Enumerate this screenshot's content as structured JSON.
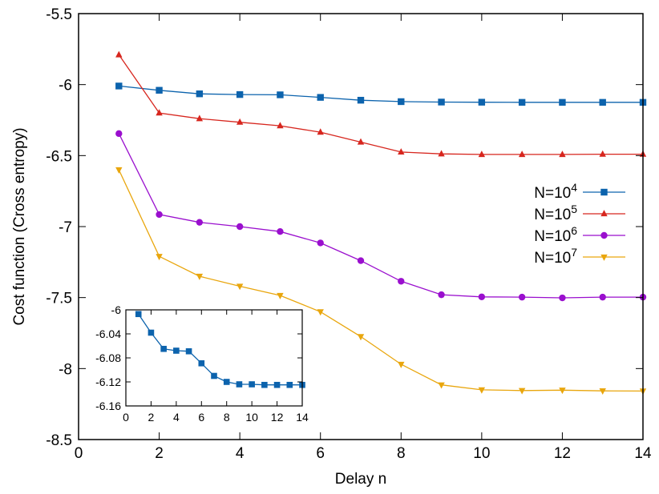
{
  "chart_data": [
    {
      "type": "line",
      "xlabel": "Delay n",
      "ylabel": "Cost function (Cross entropy)",
      "xlim": [
        0,
        14
      ],
      "ylim": [
        -8.5,
        -5.5
      ],
      "xticks": [
        "0",
        "2",
        "4",
        "6",
        "8",
        "10",
        "12",
        "14"
      ],
      "yticks": [
        "-5.5",
        "-6",
        "-6.5",
        "-7",
        "-7.5",
        "-8",
        "-8.5"
      ],
      "grid": false,
      "legend_position": "right",
      "x": [
        1,
        2,
        3,
        4,
        5,
        6,
        7,
        8,
        9,
        10,
        11,
        12,
        13,
        14
      ],
      "series": [
        {
          "name": "N=10",
          "sup": "4",
          "color": "#0c63ad",
          "marker": "square",
          "values": [
            -6.01,
            -6.04,
            -6.065,
            -6.07,
            -6.072,
            -6.09,
            -6.11,
            -6.12,
            -6.123,
            -6.124,
            -6.125,
            -6.125,
            -6.125,
            -6.125
          ]
        },
        {
          "name": "N=10",
          "sup": "5",
          "color": "#d7261e",
          "marker": "triangle-up",
          "values": [
            -5.79,
            -6.2,
            -6.24,
            -6.265,
            -6.29,
            -6.335,
            -6.405,
            -6.475,
            -6.488,
            -6.492,
            -6.492,
            -6.492,
            -6.49,
            -6.49
          ]
        },
        {
          "name": "N=10",
          "sup": "6",
          "color": "#9a0fce",
          "marker": "circle",
          "values": [
            -6.345,
            -6.915,
            -6.97,
            -7.0,
            -7.035,
            -7.115,
            -7.24,
            -7.385,
            -7.48,
            -7.495,
            -7.497,
            -7.502,
            -7.497,
            -7.497
          ]
        },
        {
          "name": "N=10",
          "sup": "7",
          "color": "#e9a60d",
          "marker": "triangle-down",
          "values": [
            -6.6,
            -7.21,
            -7.35,
            -7.42,
            -7.485,
            -7.6,
            -7.775,
            -7.97,
            -8.115,
            -8.15,
            -8.155,
            -8.152,
            -8.157,
            -8.158
          ]
        }
      ]
    },
    {
      "type": "line",
      "xlabel": "",
      "ylabel": "",
      "xlim": [
        0,
        14
      ],
      "ylim": [
        -6.16,
        -6.0
      ],
      "xticks": [
        "0",
        "2",
        "4",
        "6",
        "8",
        "10",
        "12",
        "14"
      ],
      "yticks": [
        "-6",
        "-6.04",
        "-6.08",
        "-6.12",
        "-6.16"
      ],
      "grid": false,
      "x": [
        1,
        2,
        3,
        4,
        5,
        6,
        7,
        8,
        9,
        10,
        11,
        12,
        13,
        14
      ],
      "series": [
        {
          "color": "#0c63ad",
          "marker": "square",
          "values": [
            -6.007,
            -6.038,
            -6.065,
            -6.068,
            -6.069,
            -6.089,
            -6.11,
            -6.12,
            -6.124,
            -6.124,
            -6.125,
            -6.125,
            -6.125,
            -6.125
          ]
        }
      ]
    }
  ]
}
